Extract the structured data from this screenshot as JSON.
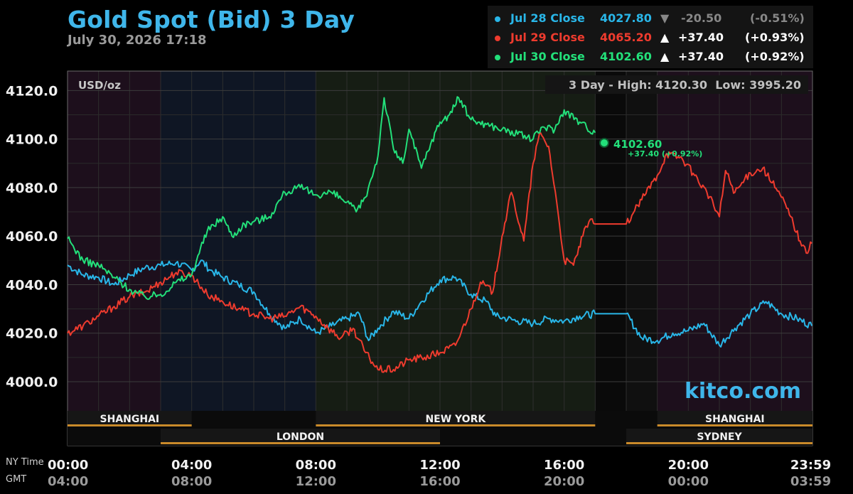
{
  "title": "Gold Spot (Bid) 3 Day",
  "timestamp": "July 30, 2026 17:18",
  "colors": {
    "jul28": "#29b6e8",
    "jul29": "#ee3b2e",
    "jul30": "#23e07a",
    "title": "#3fb6ea",
    "market": "#c98a2a"
  },
  "legend": [
    {
      "label": "Jul 28 Close",
      "value": "4027.80",
      "arrow": "▼",
      "change": "-20.50",
      "pct": "(-0.51%)",
      "color": "#29b6e8"
    },
    {
      "label": "Jul 29 Close",
      "value": "4065.20",
      "arrow": "▲",
      "change": "+37.40",
      "pct": "(+0.93%)",
      "color": "#ee3b2e"
    },
    {
      "label": "Jul 30 Close",
      "value": "4102.60",
      "arrow": "▲",
      "change": "+37.40",
      "pct": "(+0.92%)",
      "color": "#23e07a"
    }
  ],
  "unit_label": "USD/oz",
  "range_text": "3 Day - High: 4120.30  Low: 3995.20",
  "watermark": "kitco.com",
  "last_price": {
    "value": "4102.60",
    "change": "+37.40 (+0.92%)"
  },
  "time_rows": {
    "ny_label": "NY Time",
    "gmt_label": "GMT"
  },
  "markets": [
    {
      "name": "SHANGHAI",
      "start": 0,
      "end": 4
    },
    {
      "name": "LONDON",
      "start": 3,
      "end": 12
    },
    {
      "name": "NEW YORK",
      "start": 8,
      "end": 17
    },
    {
      "name": "SYDNEY",
      "start": 18,
      "end": 24
    },
    {
      "name": "SHANGHAI",
      "start": 19,
      "end": 24
    }
  ],
  "chart_data": {
    "type": "line",
    "title": "Gold Spot (Bid) 3 Day",
    "ylabel": "USD/oz",
    "ylim": [
      3988,
      4128
    ],
    "xlim": [
      0,
      24
    ],
    "grid": true,
    "yticks": [
      "4000.0",
      "4020.0",
      "4040.0",
      "4060.0",
      "4080.0",
      "4100.0",
      "4120.0"
    ],
    "yticks_values": [
      4000,
      4020,
      4040,
      4060,
      4080,
      4100,
      4120
    ],
    "xticks": [
      {
        "hour": 0,
        "ny": "00:00",
        "gmt": "04:00"
      },
      {
        "hour": 4,
        "ny": "04:00",
        "gmt": "08:00"
      },
      {
        "hour": 8,
        "ny": "08:00",
        "gmt": "12:00"
      },
      {
        "hour": 12,
        "ny": "12:00",
        "gmt": "16:00"
      },
      {
        "hour": 16,
        "ny": "16:00",
        "gmt": "20:00"
      },
      {
        "hour": 20,
        "ny": "20:00",
        "gmt": "00:00"
      },
      {
        "hour": 23.98,
        "ny": "23:59",
        "gmt": "03:59"
      }
    ],
    "series": [
      {
        "name": "Jul 28",
        "color": "#29b6e8",
        "points": [
          [
            0,
            4048
          ],
          [
            0.5,
            4044
          ],
          [
            1,
            4043
          ],
          [
            1.5,
            4040
          ],
          [
            2,
            4044
          ],
          [
            2.5,
            4047
          ],
          [
            3,
            4048
          ],
          [
            3.5,
            4049
          ],
          [
            4,
            4046
          ],
          [
            4.3,
            4050
          ],
          [
            4.6,
            4046
          ],
          [
            5,
            4043
          ],
          [
            5.5,
            4040
          ],
          [
            6,
            4037
          ],
          [
            6.5,
            4028
          ],
          [
            7,
            4022
          ],
          [
            7.5,
            4026
          ],
          [
            8,
            4020
          ],
          [
            8.5,
            4023
          ],
          [
            9,
            4026
          ],
          [
            9.4,
            4028
          ],
          [
            9.7,
            4017
          ],
          [
            10,
            4022
          ],
          [
            10.5,
            4029
          ],
          [
            11,
            4026
          ],
          [
            11.4,
            4033
          ],
          [
            12,
            4042
          ],
          [
            12.5,
            4043
          ],
          [
            13,
            4036
          ],
          [
            13.5,
            4033
          ],
          [
            13.8,
            4027
          ],
          [
            14.5,
            4025
          ],
          [
            15,
            4024
          ],
          [
            15.5,
            4026
          ],
          [
            16,
            4025
          ],
          [
            16.5,
            4027
          ],
          [
            17,
            4028
          ],
          [
            18,
            4028
          ],
          [
            18.5,
            4018
          ],
          [
            19,
            4017
          ],
          [
            19.5,
            4020
          ],
          [
            20,
            4021
          ],
          [
            20.5,
            4024
          ],
          [
            21,
            4015
          ],
          [
            21.5,
            4022
          ],
          [
            22,
            4028
          ],
          [
            22.5,
            4033
          ],
          [
            23,
            4028
          ],
          [
            23.5,
            4026
          ],
          [
            23.98,
            4023
          ]
        ]
      },
      {
        "name": "Jul 29",
        "color": "#ee3b2e",
        "points": [
          [
            0,
            4020
          ],
          [
            0.5,
            4023
          ],
          [
            1,
            4027
          ],
          [
            1.5,
            4031
          ],
          [
            2,
            4035
          ],
          [
            2.5,
            4037
          ],
          [
            3,
            4041
          ],
          [
            3.5,
            4045
          ],
          [
            4,
            4044
          ],
          [
            4.5,
            4036
          ],
          [
            5,
            4033
          ],
          [
            5.5,
            4030
          ],
          [
            6,
            4028
          ],
          [
            6.5,
            4026
          ],
          [
            7,
            4027
          ],
          [
            7.5,
            4031
          ],
          [
            8,
            4027
          ],
          [
            8.4,
            4022
          ],
          [
            8.8,
            4018
          ],
          [
            9.2,
            4022
          ],
          [
            9.6,
            4012
          ],
          [
            10,
            4005
          ],
          [
            10.5,
            4005
          ],
          [
            11,
            4009
          ],
          [
            11.5,
            4010
          ],
          [
            12,
            4012
          ],
          [
            12.5,
            4015
          ],
          [
            13,
            4030
          ],
          [
            13.3,
            4041
          ],
          [
            13.7,
            4037
          ],
          [
            14,
            4060
          ],
          [
            14.3,
            4078
          ],
          [
            14.7,
            4058
          ],
          [
            15,
            4090
          ],
          [
            15.2,
            4102
          ],
          [
            15.5,
            4097
          ],
          [
            15.8,
            4070
          ],
          [
            16,
            4050
          ],
          [
            16.3,
            4048
          ],
          [
            16.6,
            4060
          ],
          [
            16.8,
            4066
          ],
          [
            17,
            4065
          ],
          [
            18,
            4065
          ],
          [
            18.5,
            4075
          ],
          [
            19,
            4085
          ],
          [
            19.3,
            4094
          ],
          [
            19.8,
            4092
          ],
          [
            20.2,
            4085
          ],
          [
            20.6,
            4078
          ],
          [
            21,
            4068
          ],
          [
            21.2,
            4087
          ],
          [
            21.5,
            4078
          ],
          [
            22,
            4086
          ],
          [
            22.4,
            4088
          ],
          [
            22.7,
            4082
          ],
          [
            23,
            4076
          ],
          [
            23.3,
            4068
          ],
          [
            23.6,
            4058
          ],
          [
            23.8,
            4053
          ],
          [
            23.98,
            4057
          ]
        ]
      },
      {
        "name": "Jul 30",
        "color": "#23e07a",
        "points": [
          [
            0,
            4059
          ],
          [
            0.5,
            4050
          ],
          [
            1,
            4048
          ],
          [
            1.5,
            4043
          ],
          [
            2,
            4038
          ],
          [
            2.5,
            4035
          ],
          [
            3,
            4036
          ],
          [
            3.5,
            4041
          ],
          [
            4,
            4044
          ],
          [
            4.2,
            4052
          ],
          [
            4.5,
            4062
          ],
          [
            5,
            4068
          ],
          [
            5.3,
            4060
          ],
          [
            5.7,
            4065
          ],
          [
            6,
            4066
          ],
          [
            6.5,
            4068
          ],
          [
            7,
            4078
          ],
          [
            7.5,
            4080
          ],
          [
            8,
            4077
          ],
          [
            8.5,
            4078
          ],
          [
            9,
            4074
          ],
          [
            9.3,
            4070
          ],
          [
            9.6,
            4076
          ],
          [
            10,
            4093
          ],
          [
            10.2,
            4117
          ],
          [
            10.5,
            4096
          ],
          [
            10.8,
            4090
          ],
          [
            11,
            4104
          ],
          [
            11.4,
            4088
          ],
          [
            11.7,
            4098
          ],
          [
            12,
            4107
          ],
          [
            12.3,
            4110
          ],
          [
            12.6,
            4117
          ],
          [
            13,
            4108
          ],
          [
            13.5,
            4106
          ],
          [
            14,
            4104
          ],
          [
            14.5,
            4102
          ],
          [
            15,
            4100
          ],
          [
            15.3,
            4105
          ],
          [
            15.7,
            4104
          ],
          [
            16,
            4112
          ],
          [
            16.5,
            4107
          ],
          [
            17,
            4102.6
          ]
        ]
      }
    ]
  }
}
